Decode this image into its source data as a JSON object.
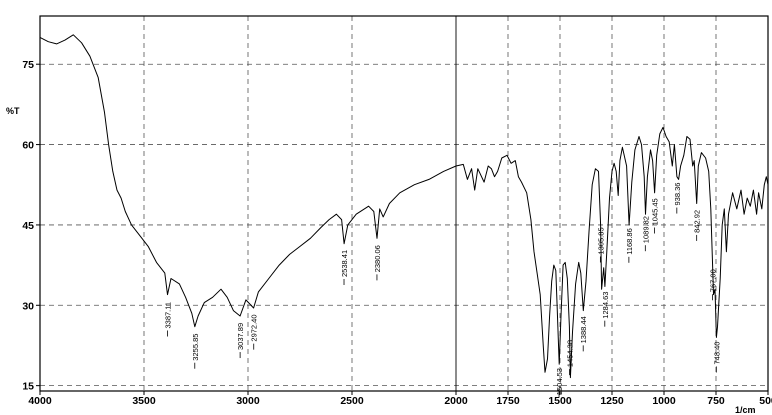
{
  "chart_data": {
    "type": "line",
    "title": "",
    "xlabel": "1/cm",
    "ylabel": "%T",
    "xlim": [
      4000,
      500
    ],
    "x_reversed": true,
    "ylim": [
      14,
      84
    ],
    "grid": "dashed",
    "x_ticks": [
      "4000",
      "3500",
      "3000",
      "2500",
      "2000",
      "1750",
      "1500",
      "1250",
      "1000",
      "750",
      "500"
    ],
    "y_ticks": [
      "15",
      "30",
      "45",
      "60",
      "75"
    ],
    "series": [
      {
        "points": [
          [
            4000,
            80.0
          ],
          [
            3960,
            79.2
          ],
          [
            3920,
            78.8
          ],
          [
            3880,
            79.5
          ],
          [
            3840,
            80.5
          ],
          [
            3800,
            79.0
          ],
          [
            3760,
            76.5
          ],
          [
            3720,
            72.5
          ],
          [
            3690,
            66.0
          ],
          [
            3670,
            60.0
          ],
          [
            3650,
            55.0
          ],
          [
            3630,
            51.5
          ],
          [
            3610,
            50.0
          ],
          [
            3590,
            47.5
          ],
          [
            3560,
            45.0
          ],
          [
            3520,
            43.0
          ],
          [
            3480,
            41.0
          ],
          [
            3440,
            38.0
          ],
          [
            3400,
            36.0
          ],
          [
            3387,
            32.0
          ],
          [
            3370,
            35.0
          ],
          [
            3330,
            34.0
          ],
          [
            3300,
            31.5
          ],
          [
            3270,
            28.5
          ],
          [
            3256,
            26.0
          ],
          [
            3240,
            28.0
          ],
          [
            3210,
            30.5
          ],
          [
            3170,
            31.5
          ],
          [
            3130,
            33.0
          ],
          [
            3100,
            31.5
          ],
          [
            3070,
            29.0
          ],
          [
            3038,
            28.0
          ],
          [
            3010,
            31.0
          ],
          [
            2973,
            29.5
          ],
          [
            2950,
            32.5
          ],
          [
            2900,
            35.0
          ],
          [
            2850,
            37.5
          ],
          [
            2800,
            39.5
          ],
          [
            2750,
            41.0
          ],
          [
            2700,
            42.5
          ],
          [
            2650,
            44.5
          ],
          [
            2610,
            46.0
          ],
          [
            2575,
            47.0
          ],
          [
            2550,
            46.0
          ],
          [
            2538,
            41.5
          ],
          [
            2520,
            45.0
          ],
          [
            2480,
            47.0
          ],
          [
            2420,
            48.5
          ],
          [
            2395,
            47.5
          ],
          [
            2380,
            42.5
          ],
          [
            2367,
            48.0
          ],
          [
            2350,
            46.5
          ],
          [
            2320,
            49.0
          ],
          [
            2270,
            51.0
          ],
          [
            2200,
            52.5
          ],
          [
            2130,
            53.5
          ],
          [
            2060,
            55.0
          ],
          [
            2000,
            56.0
          ],
          [
            1965,
            56.3
          ],
          [
            1945,
            53.5
          ],
          [
            1925,
            55.5
          ],
          [
            1910,
            51.5
          ],
          [
            1895,
            55.5
          ],
          [
            1865,
            53.0
          ],
          [
            1845,
            56.0
          ],
          [
            1830,
            55.5
          ],
          [
            1815,
            54.0
          ],
          [
            1800,
            55.0
          ],
          [
            1780,
            57.5
          ],
          [
            1755,
            58.0
          ],
          [
            1735,
            56.5
          ],
          [
            1715,
            57.0
          ],
          [
            1700,
            54.0
          ],
          [
            1685,
            53.0
          ],
          [
            1660,
            51.0
          ],
          [
            1640,
            46.0
          ],
          [
            1625,
            40.0
          ],
          [
            1610,
            36.0
          ],
          [
            1595,
            32.0
          ],
          [
            1580,
            22.0
          ],
          [
            1572,
            17.5
          ],
          [
            1560,
            20.0
          ],
          [
            1550,
            28.0
          ],
          [
            1540,
            34.5
          ],
          [
            1530,
            37.5
          ],
          [
            1520,
            36.5
          ],
          [
            1515,
            31.0
          ],
          [
            1504,
            19.0
          ],
          [
            1495,
            28.0
          ],
          [
            1485,
            37.5
          ],
          [
            1475,
            38.0
          ],
          [
            1465,
            35.0
          ],
          [
            1455,
            26.0
          ],
          [
            1450,
            16.5
          ],
          [
            1440,
            25.0
          ],
          [
            1425,
            34.0
          ],
          [
            1410,
            38.0
          ],
          [
            1400,
            36.0
          ],
          [
            1388,
            29.0
          ],
          [
            1375,
            34.5
          ],
          [
            1360,
            44.0
          ],
          [
            1345,
            52.5
          ],
          [
            1330,
            55.5
          ],
          [
            1315,
            55.0
          ],
          [
            1305,
            45.0
          ],
          [
            1300,
            33.0
          ],
          [
            1290,
            37.0
          ],
          [
            1284,
            33.5
          ],
          [
            1275,
            40.0
          ],
          [
            1262,
            50.0
          ],
          [
            1250,
            55.0
          ],
          [
            1240,
            56.5
          ],
          [
            1230,
            55.0
          ],
          [
            1220,
            50.5
          ],
          [
            1212,
            57.0
          ],
          [
            1200,
            59.5
          ],
          [
            1180,
            56.0
          ],
          [
            1168,
            45.0
          ],
          [
            1155,
            53.0
          ],
          [
            1140,
            59.0
          ],
          [
            1120,
            61.5
          ],
          [
            1108,
            60.0
          ],
          [
            1095,
            54.0
          ],
          [
            1089,
            47.0
          ],
          [
            1080,
            54.0
          ],
          [
            1065,
            59.0
          ],
          [
            1055,
            57.0
          ],
          [
            1045,
            51.0
          ],
          [
            1035,
            58.0
          ],
          [
            1020,
            62.0
          ],
          [
            1005,
            63.2
          ],
          [
            990,
            61.5
          ],
          [
            975,
            60.5
          ],
          [
            960,
            56.0
          ],
          [
            950,
            60.0
          ],
          [
            938,
            54.0
          ],
          [
            930,
            53.5
          ],
          [
            920,
            56.0
          ],
          [
            905,
            58.0
          ],
          [
            890,
            61.5
          ],
          [
            875,
            61.0
          ],
          [
            862,
            56.0
          ],
          [
            855,
            57.0
          ],
          [
            843,
            49.0
          ],
          [
            835,
            56.0
          ],
          [
            820,
            58.5
          ],
          [
            800,
            57.5
          ],
          [
            785,
            55.0
          ],
          [
            775,
            48.0
          ],
          [
            767,
            38.0
          ],
          [
            762,
            32.0
          ],
          [
            755,
            33.0
          ],
          [
            748,
            24.0
          ],
          [
            743,
            26.0
          ],
          [
            730,
            35.0
          ],
          [
            720,
            45.0
          ],
          [
            710,
            48.0
          ],
          [
            700,
            40.0
          ],
          [
            690,
            47.0
          ],
          [
            670,
            51.0
          ],
          [
            650,
            48.0
          ],
          [
            630,
            51.5
          ],
          [
            615,
            47.0
          ],
          [
            600,
            50.0
          ],
          [
            585,
            48.5
          ],
          [
            570,
            51.5
          ],
          [
            555,
            47.0
          ],
          [
            545,
            51.0
          ],
          [
            530,
            48.0
          ],
          [
            518,
            52.5
          ],
          [
            508,
            54.0
          ],
          [
            500,
            52.5
          ]
        ]
      }
    ],
    "peaks": [
      {
        "x": 3387.11,
        "label": "3387.11"
      },
      {
        "x": 3255.85,
        "label": "3255.85"
      },
      {
        "x": 3037.89,
        "label": "3037.89"
      },
      {
        "x": 2972.4,
        "label": "2972.40"
      },
      {
        "x": 2538.41,
        "label": "2538.41"
      },
      {
        "x": 2380.06,
        "label": "2380.06"
      },
      {
        "x": 1504.53,
        "label": "1504.53"
      },
      {
        "x": 1454.38,
        "label": "1454.38"
      },
      {
        "x": 1388.44,
        "label": "1388.44"
      },
      {
        "x": 1305.85,
        "label": "1305.85"
      },
      {
        "x": 1284.63,
        "label": "1284.63"
      },
      {
        "x": 1168.86,
        "label": "1168.86"
      },
      {
        "x": 1089.82,
        "label": "1089.82"
      },
      {
        "x": 1045.45,
        "label": "1045.45"
      },
      {
        "x": 938.36,
        "label": "938.36"
      },
      {
        "x": 842.92,
        "label": "842.92"
      },
      {
        "x": 767.0,
        "label": "767.00"
      },
      {
        "x": 748.4,
        "label": "748.40"
      }
    ]
  }
}
